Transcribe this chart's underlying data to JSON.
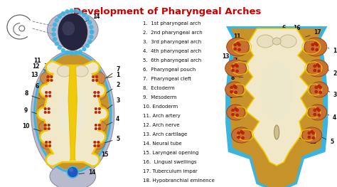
{
  "title": "Development of Pharyngeal Arches",
  "title_color": "#cc0000",
  "title_fontsize": 9.5,
  "background_color": "#ffffff",
  "legend_items": [
    "1.  1st pharyngeal arch",
    "2.  2nd pharyngeal arch",
    "3.  3rd pharyngeal arch",
    "4.  4th pharyngeal arch",
    "5.  6th pharyngeal arch",
    "6.  Pharyngeal pouch",
    "7.  Pharyngeal cleft",
    "8.  Ectoderm",
    "9.  Mesoderm",
    "10. Endoderm",
    "11. Arch artery",
    "12. Arch nerve",
    "13. Arch cartilage",
    "14. Neural tube",
    "15. Laryngeal opening",
    "16.  Lingual swellings",
    "17. Tuberculum impar",
    "18. Hypobranchial eminence"
  ],
  "colors": {
    "blue_outline": "#3ab4e0",
    "brown_dark": "#b07820",
    "brown_med": "#c8922a",
    "brown_light": "#d4a850",
    "cream": "#e8d8a0",
    "cream_light": "#f0e8c8",
    "gray_outer": "#b8bac8",
    "gray_mid": "#9898aa",
    "yellow_bright": "#f0c800",
    "yellow_line": "#e8c000",
    "red_dot": "#cc2200",
    "arch_orange": "#c87030",
    "arch_tan": "#cc8844",
    "black": "#111111",
    "line_dark": "#444444"
  }
}
